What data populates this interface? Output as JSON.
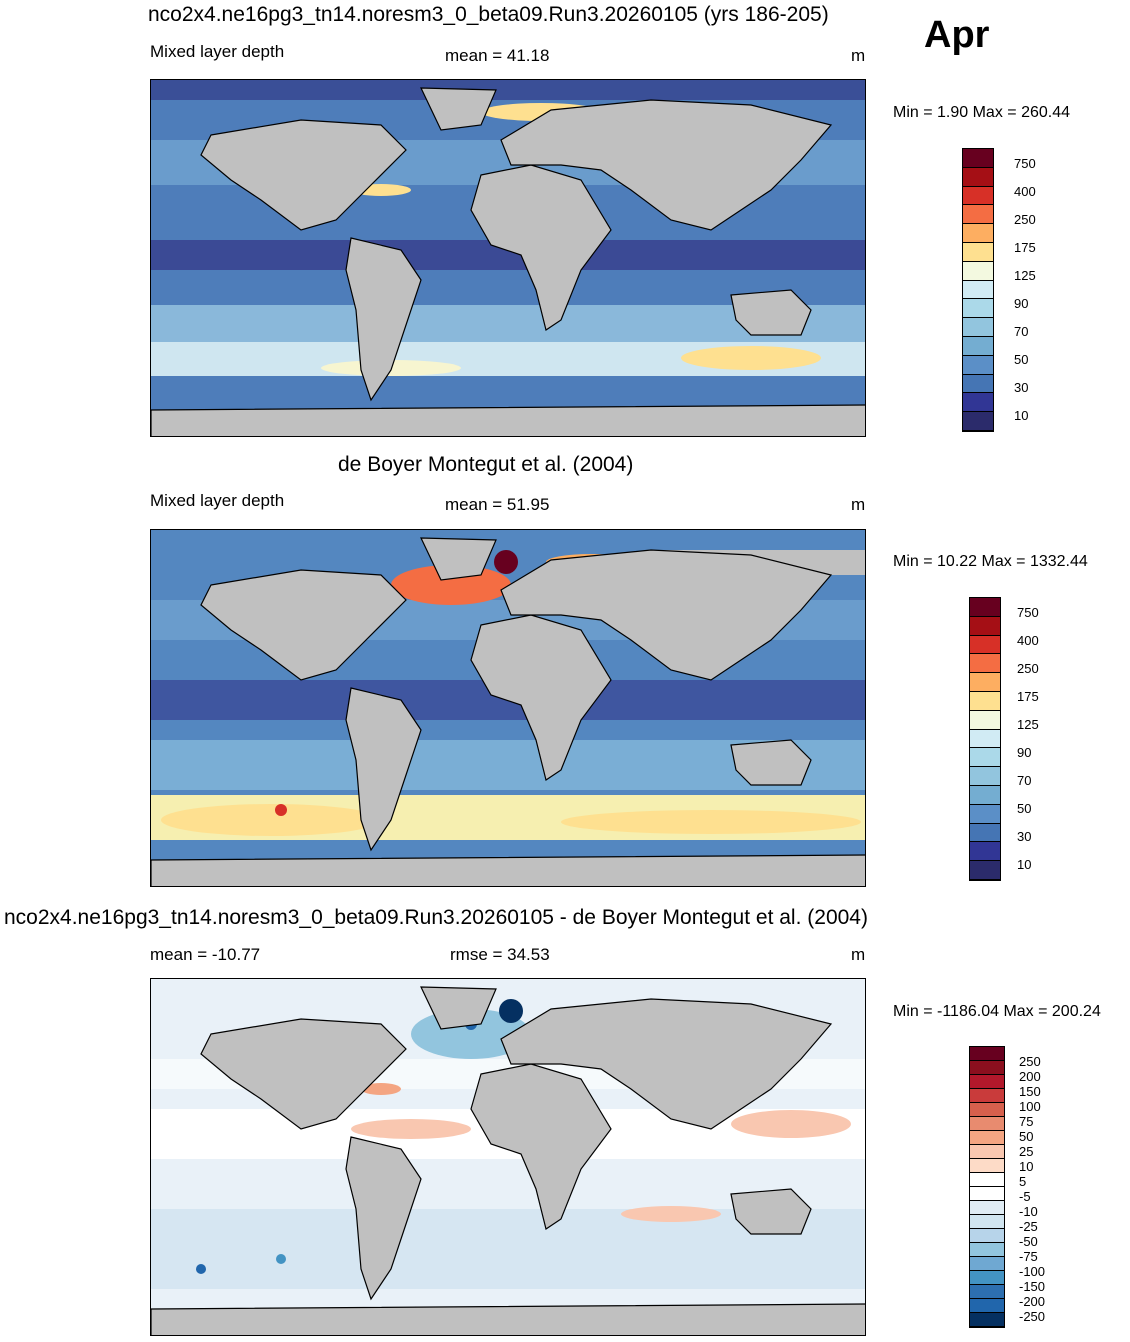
{
  "month": "Apr",
  "panels": [
    {
      "title": "nco2x4.ne16pg3_tn14.noresm3_0_beta09.Run3.20260105 (yrs 186-205)",
      "left_label": "Mixed layer depth",
      "center_label": "mean =  41.18",
      "units": "m",
      "minmax": "Min =   1.90 Max = 260.44",
      "palette": "seq",
      "colorbar_labels": [
        "750",
        "400",
        "250",
        "175",
        "125",
        "90",
        "70",
        "50",
        "30",
        "10"
      ]
    },
    {
      "title": "de Boyer Montegut et al. (2004)",
      "left_label": "Mixed layer depth",
      "center_label": "mean =  51.95",
      "units": "m",
      "minmax": "Min =  10.22 Max = 1332.44",
      "palette": "seq",
      "colorbar_labels": [
        "750",
        "400",
        "250",
        "175",
        "125",
        "90",
        "70",
        "50",
        "30",
        "10"
      ]
    },
    {
      "title": "nco2x4.ne16pg3_tn14.noresm3_0_beta09.Run3.20260105 - de Boyer Montegut et al. (2004)",
      "left_label": "mean = -10.77",
      "center_label": "rmse =  34.53",
      "units": "m",
      "minmax": "Min = -1186.04 Max = 200.24",
      "palette": "div",
      "colorbar_labels": [
        "250",
        "200",
        "150",
        "100",
        "75",
        "50",
        "25",
        "10",
        "5",
        "-5",
        "-10",
        "-25",
        "-50",
        "-75",
        "-100",
        "-150",
        "-200",
        "-250"
      ]
    }
  ],
  "colors": {
    "land": "#c0c0c0",
    "seq": [
      "#67001f",
      "#a50f15",
      "#d73027",
      "#f46d43",
      "#fdae61",
      "#fee090",
      "#f3f9e0",
      "#d1ebf4",
      "#abd9e9",
      "#92c5de",
      "#74add1",
      "#5b8fc7",
      "#4575b4",
      "#313695",
      "#2b2b6b"
    ],
    "div": [
      "#67001f",
      "#8b0f1e",
      "#b2182b",
      "#c93b3b",
      "#d6604d",
      "#e88b6f",
      "#f4a582",
      "#f9c7b0",
      "#fddbc7",
      "#ffffff",
      "#ffffff",
      "#e0ecf4",
      "#d1e5f0",
      "#b7d4ea",
      "#92c5de",
      "#6fa8d2",
      "#4393c3",
      "#2d6fb0",
      "#2166ac",
      "#053061"
    ]
  }
}
